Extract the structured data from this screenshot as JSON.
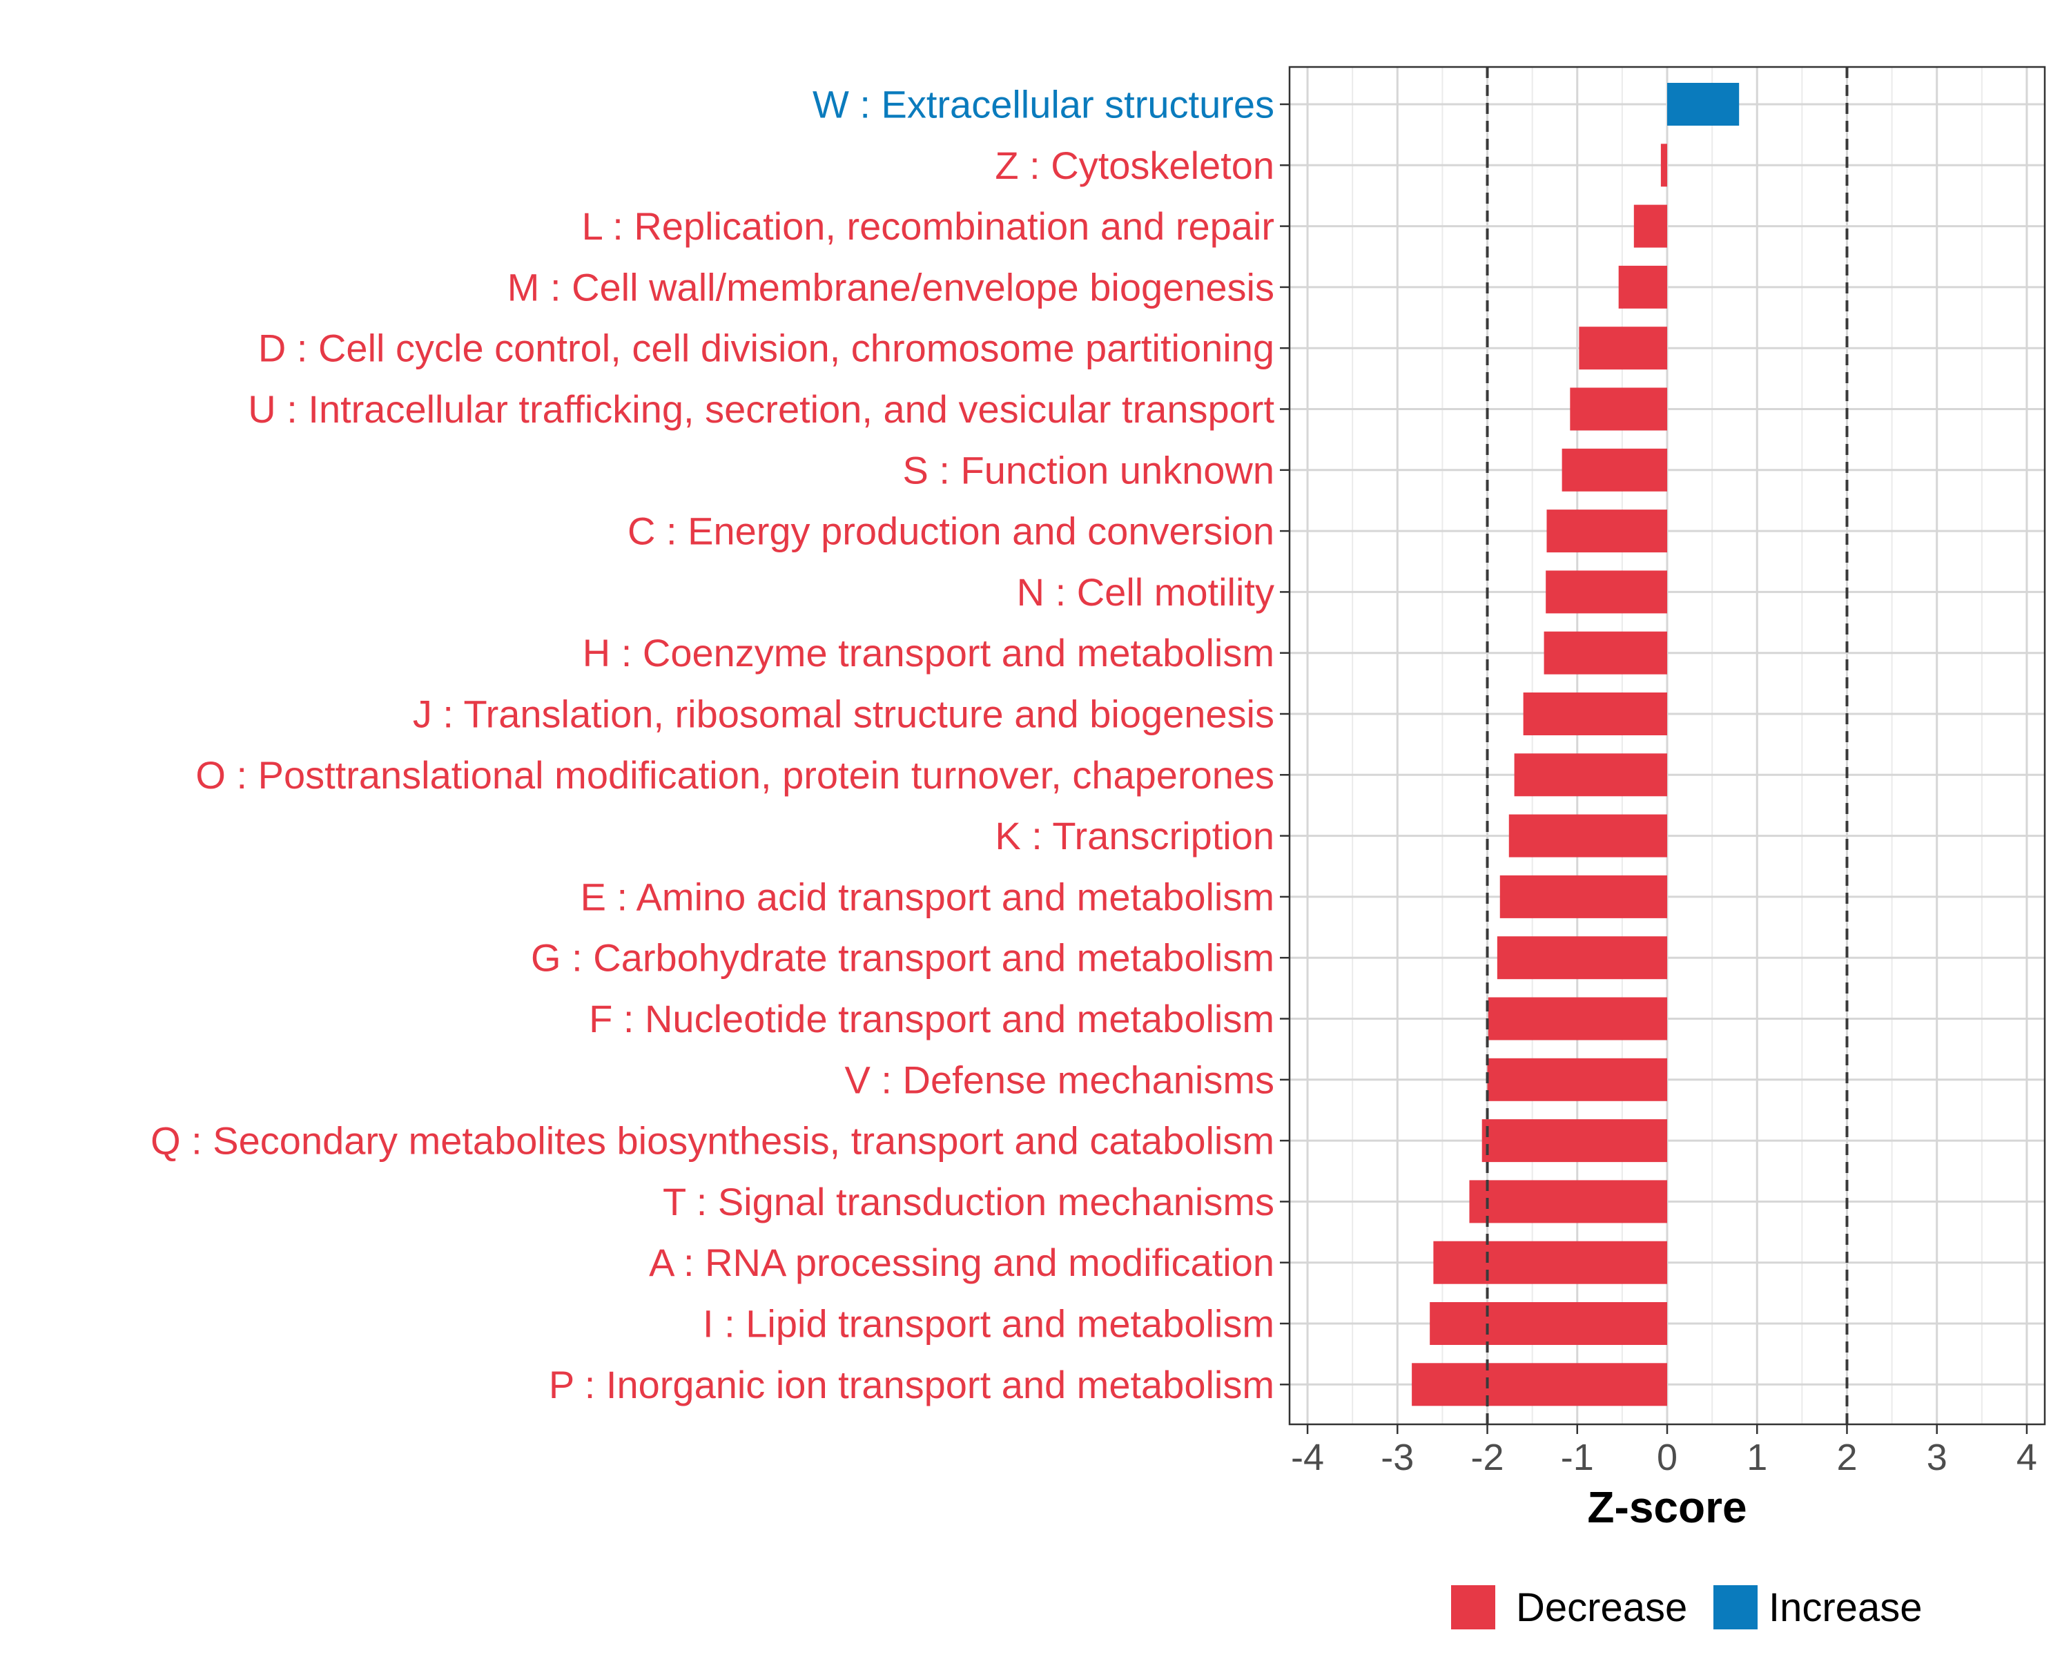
{
  "chart_data": {
    "type": "bar",
    "orientation": "horizontal",
    "title": "",
    "xlabel": "Z-score",
    "ylabel": "",
    "xlim": [
      -4.2,
      4.2
    ],
    "x_ticks": [
      "-4",
      "-3",
      "-2",
      "-1",
      "0",
      "1",
      "2",
      "3",
      "4"
    ],
    "reference_lines": [
      -2,
      2
    ],
    "grid": true,
    "categories": [
      {
        "label": "W : Extracellular structures",
        "value": 0.8,
        "group": "Increase"
      },
      {
        "label": "Z : Cytoskeleton",
        "value": -0.07,
        "group": "Decrease"
      },
      {
        "label": "L : Replication, recombination and repair",
        "value": -0.37,
        "group": "Decrease"
      },
      {
        "label": "M : Cell wall/membrane/envelope biogenesis",
        "value": -0.54,
        "group": "Decrease"
      },
      {
        "label": "D : Cell cycle control, cell division, chromosome partitioning",
        "value": -0.98,
        "group": "Decrease"
      },
      {
        "label": "U : Intracellular trafficking, secretion, and vesicular transport",
        "value": -1.08,
        "group": "Decrease"
      },
      {
        "label": "S : Function unknown",
        "value": -1.17,
        "group": "Decrease"
      },
      {
        "label": "C : Energy production and conversion",
        "value": -1.34,
        "group": "Decrease"
      },
      {
        "label": "N : Cell motility",
        "value": -1.35,
        "group": "Decrease"
      },
      {
        "label": "H : Coenzyme transport and metabolism",
        "value": -1.37,
        "group": "Decrease"
      },
      {
        "label": "J : Translation, ribosomal structure and biogenesis",
        "value": -1.6,
        "group": "Decrease"
      },
      {
        "label": "O : Posttranslational modification, protein turnover, chaperones",
        "value": -1.7,
        "group": "Decrease"
      },
      {
        "label": "K : Transcription",
        "value": -1.76,
        "group": "Decrease"
      },
      {
        "label": "E : Amino acid transport and metabolism",
        "value": -1.86,
        "group": "Decrease"
      },
      {
        "label": "G : Carbohydrate transport and metabolism",
        "value": -1.89,
        "group": "Decrease"
      },
      {
        "label": "F : Nucleotide transport and metabolism",
        "value": -1.99,
        "group": "Decrease"
      },
      {
        "label": "V : Defense mechanisms",
        "value": -2.0,
        "group": "Decrease"
      },
      {
        "label": "Q : Secondary metabolites biosynthesis, transport and catabolism",
        "value": -2.06,
        "group": "Decrease"
      },
      {
        "label": "T : Signal transduction mechanisms",
        "value": -2.2,
        "group": "Decrease"
      },
      {
        "label": "A : RNA processing and modification",
        "value": -2.6,
        "group": "Decrease"
      },
      {
        "label": "I : Lipid transport and metabolism",
        "value": -2.64,
        "group": "Decrease"
      },
      {
        "label": "P : Inorganic ion transport and metabolism",
        "value": -2.84,
        "group": "Decrease"
      }
    ],
    "legend": {
      "placement": "bottom",
      "entries": [
        {
          "name": "Decrease",
          "color": "#e63946"
        },
        {
          "name": "Increase",
          "color": "#0a7bbd"
        }
      ]
    }
  }
}
